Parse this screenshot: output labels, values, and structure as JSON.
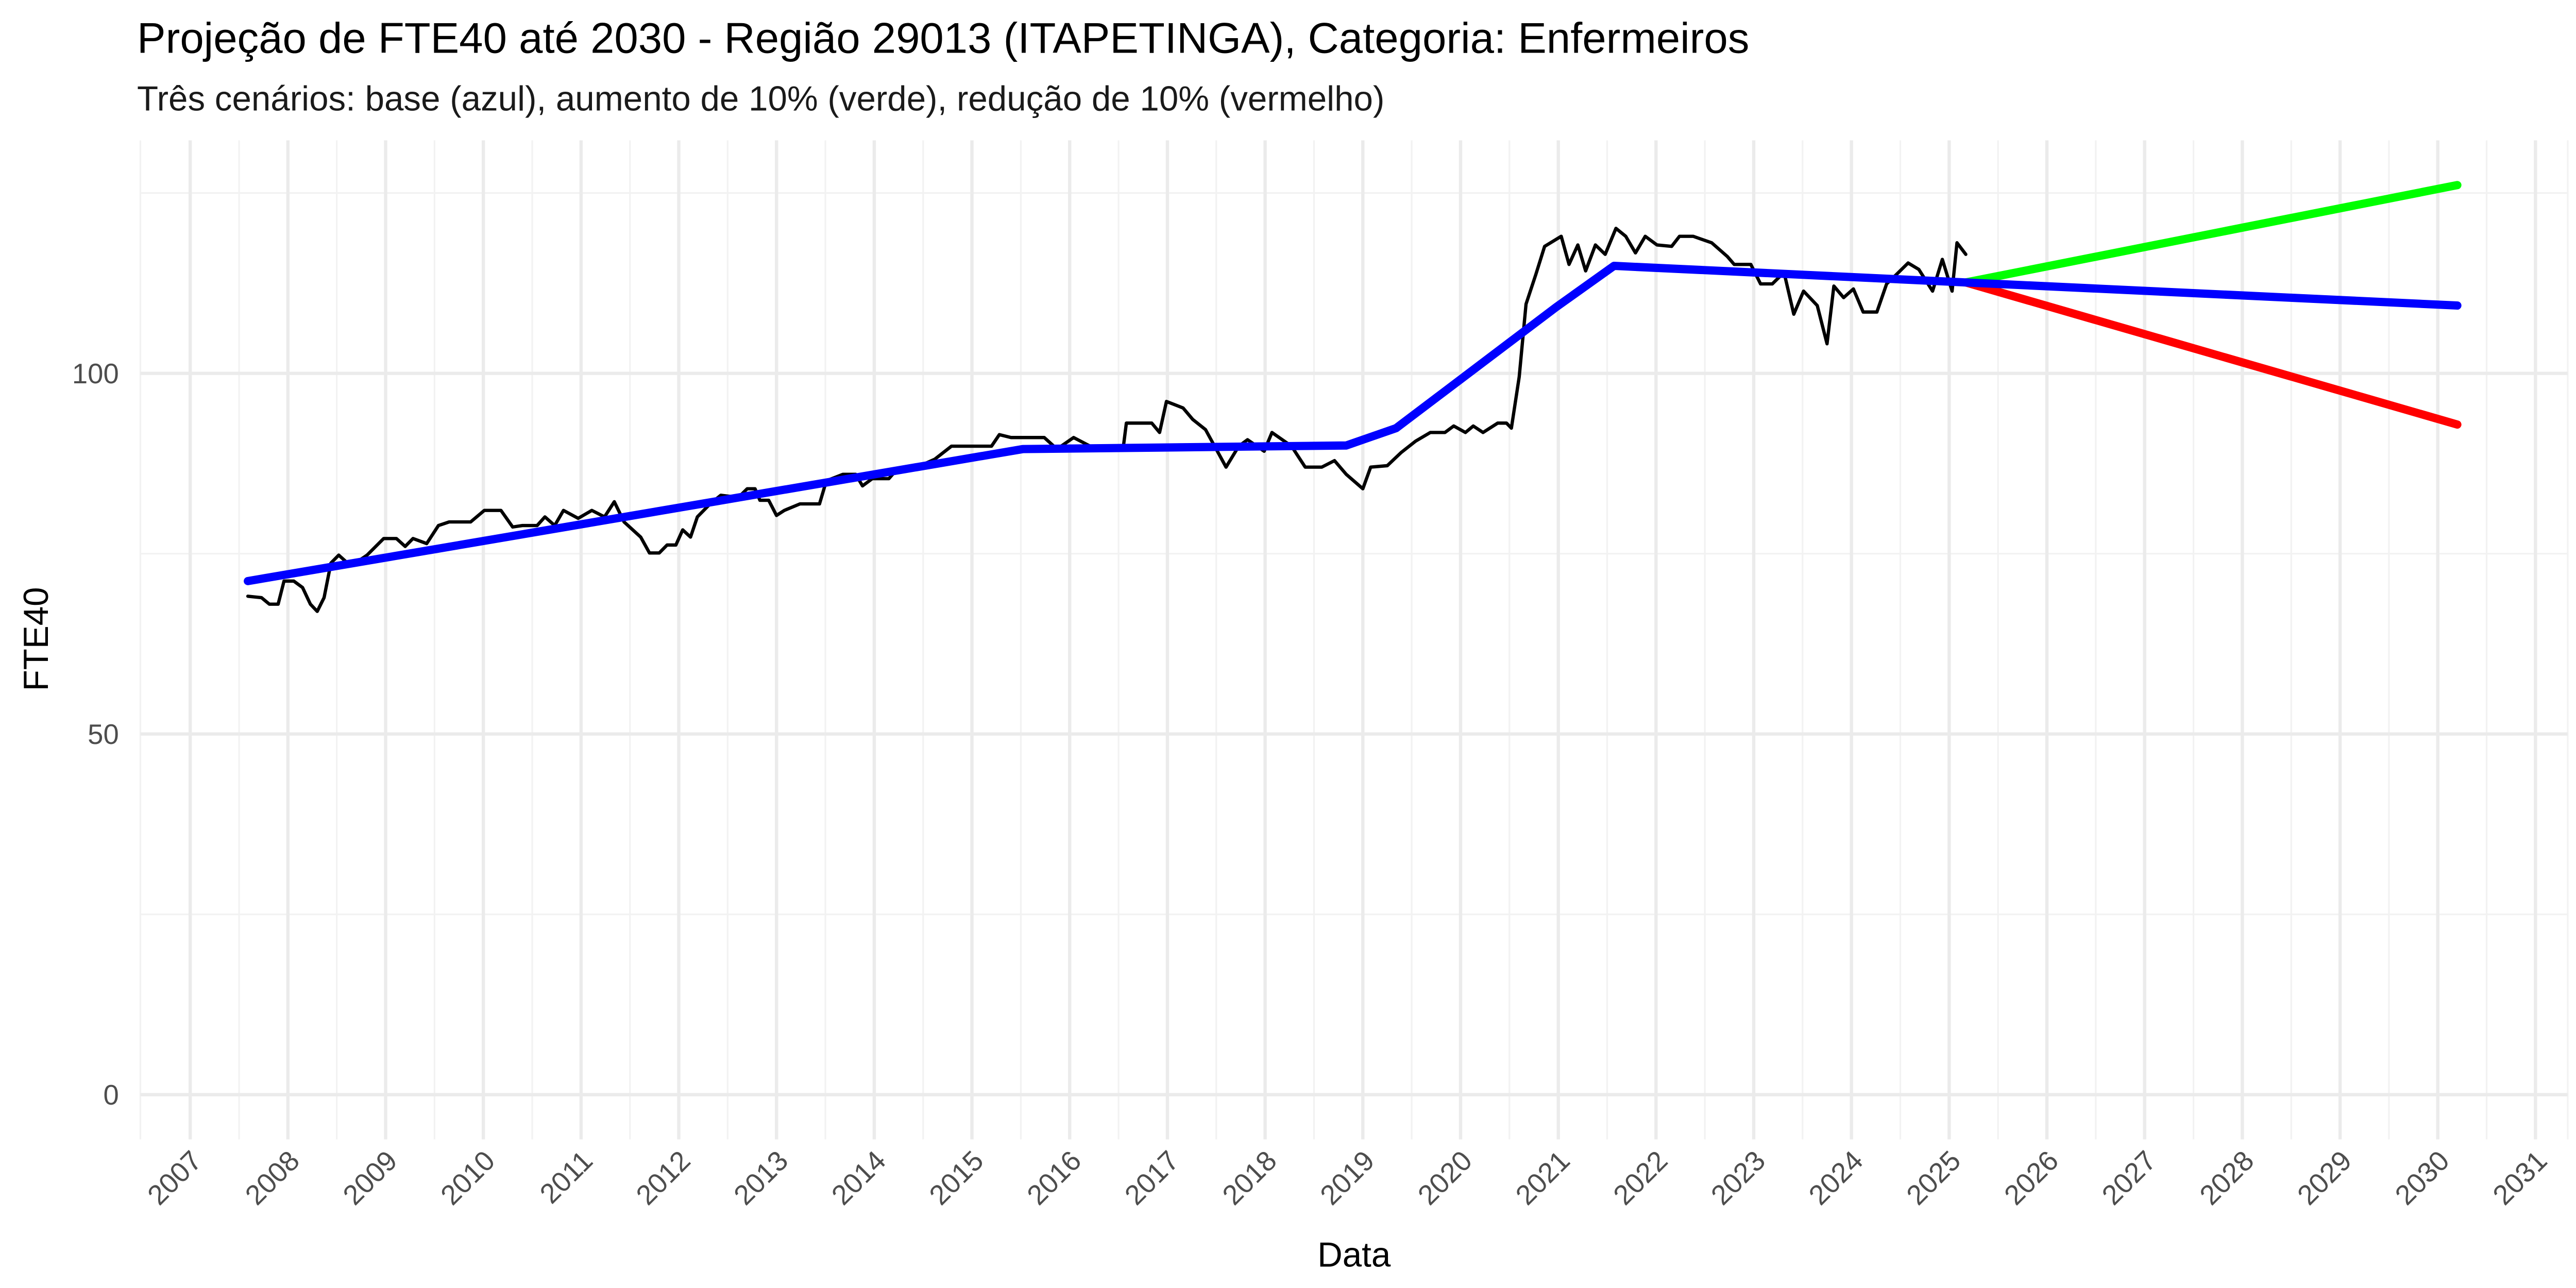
{
  "chart_data": {
    "type": "line",
    "title": "Projeção de FTE40 até 2030 - Região 29013 (ITAPETINGA), Categoria: Enfermeiros",
    "subtitle": "Três cenários: base (azul), aumento de 10% (verde), redução de 10% (vermelho)",
    "x_label": "Data",
    "y_label": "FTE40",
    "xlim": [
      2006.49,
      2031.33
    ],
    "ylim": [
      -6.2,
      132.3
    ],
    "xticks": [
      2007,
      2008,
      2009,
      2010,
      2011,
      2012,
      2013,
      2014,
      2015,
      2016,
      2017,
      2018,
      2019,
      2020,
      2021,
      2022,
      2023,
      2024,
      2025,
      2026,
      2027,
      2028,
      2029,
      2030,
      2031
    ],
    "yticks": [
      0,
      50,
      100
    ],
    "grid": true,
    "series": [
      {
        "color": "#000000",
        "width": 2,
        "x": [
          2007.59,
          2007.73,
          2007.81,
          2007.9,
          2007.96,
          2008.06,
          2008.15,
          2008.23,
          2008.3,
          2008.37,
          2008.44,
          2008.52,
          2008.61,
          2008.69,
          2008.81,
          2008.98,
          2009.11,
          2009.2,
          2009.28,
          2009.42,
          2009.54,
          2009.65,
          2009.87,
          2010.01,
          2010.18,
          2010.3,
          2010.4,
          2010.55,
          2010.63,
          2010.73,
          2010.82,
          2010.97,
          2011.11,
          2011.24,
          2011.34,
          2011.44,
          2011.61,
          2011.7,
          2011.8,
          2011.88,
          2011.97,
          2012.04,
          2012.12,
          2012.19,
          2012.32,
          2012.43,
          2012.61,
          2012.7,
          2012.78,
          2012.83,
          2012.92,
          2013.0,
          2013.08,
          2013.24,
          2013.44,
          2013.51,
          2013.68,
          2013.81,
          2013.88,
          2013.98,
          2014.15,
          2014.22,
          2014.39,
          2014.62,
          2014.79,
          2015.03,
          2015.2,
          2015.28,
          2015.4,
          2015.74,
          2015.87,
          2016.04,
          2016.21,
          2016.55,
          2016.58,
          2016.84,
          2016.92,
          2016.99,
          2017.16,
          2017.26,
          2017.39,
          2017.6,
          2017.73,
          2017.82,
          2017.99,
          2018.07,
          2018.27,
          2018.41,
          2018.58,
          2018.71,
          2018.83,
          2019.0,
          2019.08,
          2019.25,
          2019.39,
          2019.54,
          2019.69,
          2019.84,
          2019.93,
          2020.05,
          2020.13,
          2020.23,
          2020.38,
          2020.47,
          2020.52,
          2020.6,
          2020.67,
          2020.77,
          2020.86,
          2021.03,
          2021.11,
          2021.2,
          2021.28,
          2021.38,
          2021.48,
          2021.59,
          2021.69,
          2021.79,
          2021.89,
          2022.01,
          2022.16,
          2022.24,
          2022.38,
          2022.57,
          2022.73,
          2022.8,
          2022.97,
          2023.07,
          2023.19,
          2023.31,
          2023.41,
          2023.51,
          2023.65,
          2023.75,
          2023.82,
          2023.92,
          2024.02,
          2024.12,
          2024.26,
          2024.36,
          2024.46,
          2024.58,
          2024.69,
          2024.83,
          2024.93,
          2025.03,
          2025.08,
          2025.17
        ],
        "values": [
          69.1,
          68.9,
          68.0,
          68.0,
          71.2,
          71.2,
          70.3,
          68.0,
          67.0,
          68.9,
          73.7,
          74.8,
          73.7,
          73.7,
          74.8,
          77.1,
          77.1,
          76.0,
          77.1,
          76.4,
          78.9,
          79.4,
          79.4,
          81.0,
          81.0,
          78.7,
          78.9,
          78.9,
          80.1,
          78.9,
          81.0,
          79.9,
          81.0,
          80.1,
          82.2,
          79.4,
          77.3,
          75.1,
          75.1,
          76.2,
          76.2,
          78.3,
          77.3,
          80.1,
          81.9,
          83.1,
          82.8,
          84.0,
          84.0,
          82.4,
          82.4,
          80.3,
          81.0,
          81.9,
          81.9,
          85.1,
          86.0,
          86.0,
          84.4,
          85.4,
          85.4,
          86.5,
          86.7,
          88.1,
          89.9,
          89.9,
          89.9,
          91.5,
          91.1,
          91.1,
          89.5,
          91.1,
          89.9,
          89.9,
          93.1,
          93.1,
          91.8,
          96.1,
          95.2,
          93.6,
          92.2,
          87.0,
          89.9,
          90.8,
          89.2,
          91.8,
          89.9,
          87.0,
          87.0,
          87.9,
          86.0,
          84.0,
          87.0,
          87.2,
          89.0,
          90.6,
          91.8,
          91.8,
          92.7,
          91.8,
          92.7,
          91.8,
          93.1,
          93.1,
          92.4,
          99.5,
          109.6,
          113.7,
          117.6,
          119.0,
          115.1,
          117.8,
          114.2,
          117.8,
          116.5,
          120.1,
          119.0,
          116.7,
          119.0,
          117.8,
          117.6,
          119.0,
          119.0,
          118.1,
          116.2,
          115.1,
          115.1,
          112.4,
          112.4,
          114.0,
          108.2,
          111.4,
          109.4,
          104.1,
          112.1,
          110.5,
          111.7,
          108.5,
          108.5,
          112.4,
          113.7,
          115.3,
          114.4,
          111.4,
          115.8,
          111.4,
          118.1,
          116.5
        ]
      },
      {
        "color": "#00ff00",
        "width": 5,
        "x": [
          2025.17,
          2030.2
        ],
        "values": [
          112.6,
          126.1
        ]
      },
      {
        "color": "#ff0000",
        "width": 5,
        "x": [
          2025.17,
          2030.2
        ],
        "values": [
          112.6,
          92.9
        ]
      },
      {
        "color": "#0000ff",
        "width": 5,
        "x": [
          2007.59,
          2015.52,
          2018.83,
          2019.34,
          2020.98,
          2021.57,
          2025.17,
          2030.2
        ],
        "values": [
          71.2,
          89.5,
          90.0,
          92.4,
          109.2,
          114.9,
          112.6,
          109.4
        ]
      }
    ]
  }
}
